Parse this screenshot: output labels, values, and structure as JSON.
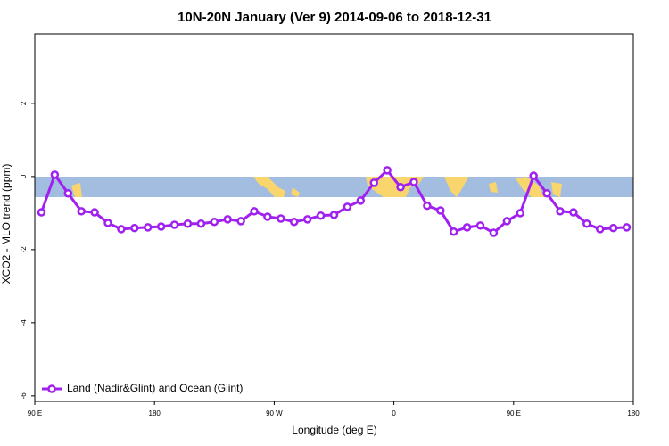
{
  "chart_data": {
    "type": "line",
    "title": "10N-20N January (Ver 9)   2014-09-06 to 2018-12-31",
    "x_label": "Longitude (deg E)",
    "y_label": "XCO2 - MLO trend (ppm)",
    "x": [
      95,
      105,
      115,
      125,
      135,
      145,
      155,
      165,
      175,
      185,
      195,
      205,
      215,
      225,
      235,
      245,
      255,
      265,
      275,
      285,
      295,
      305,
      315,
      325,
      335,
      345,
      355,
      365,
      375,
      385,
      395,
      405,
      415,
      425,
      435,
      445,
      455,
      465,
      475,
      485,
      495,
      505,
      515,
      525,
      535
    ],
    "series": [
      {
        "name": "Land (Nadir&Glint) and Ocean (Glint)",
        "color": "#a020f0",
        "values": [
          -0.98,
          0.05,
          -0.46,
          -0.95,
          -0.98,
          -1.27,
          -1.44,
          -1.41,
          -1.39,
          -1.37,
          -1.32,
          -1.29,
          -1.29,
          -1.24,
          -1.17,
          -1.22,
          -0.95,
          -1.1,
          -1.15,
          -1.24,
          -1.17,
          -1.07,
          -1.05,
          -0.83,
          -0.66,
          -0.17,
          0.17,
          -0.29,
          -0.15,
          -0.8,
          -0.93,
          -1.51,
          -1.39,
          -1.34,
          -1.54,
          -1.22,
          -1.0,
          0.02,
          -0.46,
          -0.95,
          -0.98,
          -1.29,
          -1.44,
          -1.41,
          -1.39
        ]
      }
    ],
    "xlim": [
      90,
      540
    ],
    "xticks": [
      {
        "value": 90,
        "label": "90 E"
      },
      180,
      {
        "value": 270,
        "label": "90 W"
      },
      {
        "value": 360,
        "label": "0"
      },
      {
        "value": 450,
        "label": "90 E"
      },
      {
        "value": 540,
        "label": "180"
      }
    ],
    "ylim": [
      -6.15,
      3.9
    ],
    "yticks": [
      -6,
      -4,
      -2,
      0,
      2
    ],
    "legend": "bottom-left"
  }
}
